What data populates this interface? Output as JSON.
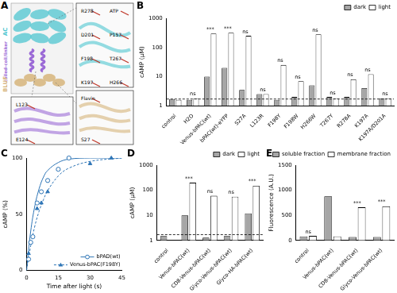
{
  "structure_panel": {
    "panel": "A",
    "domains": [
      {
        "label": "AC",
        "color": "#4fc6d0"
      },
      {
        "label": "coiled-coil/linker",
        "color": "#9b6ad6"
      },
      {
        "label": "BLUF",
        "color": "#d6b47a"
      }
    ],
    "site_labels": {
      "active_site": [
        "R278",
        "ATP",
        "D201",
        "P157",
        "F198",
        "T267",
        "K197",
        "H266"
      ],
      "linker": [
        "L123",
        "E124"
      ],
      "flavin_site": [
        "Flavin",
        "S27"
      ]
    }
  },
  "chart_data": [
    {
      "panel": "B",
      "type": "bar",
      "log": "y",
      "y_label": "cAMP (µM)",
      "categories": [
        "control",
        "H2O",
        "Venus-bPAC(wt)",
        "bPAC(wt)-eYFP",
        "S27A",
        "L123R",
        "F198Y",
        "F198W",
        "H266W",
        "T267Y",
        "R278A",
        "K197A",
        "K197A/D201A"
      ],
      "series": [
        {
          "name": "dark",
          "color": "#a6a6a6",
          "values": [
            1.7,
            1.6,
            10,
            20,
            3.5,
            2.5,
            1.6,
            2,
            5,
            2,
            2,
            4,
            1.8
          ]
        },
        {
          "name": "light",
          "color": "#ffffff",
          "values": [
            1.6,
            1.8,
            300,
            320,
            250,
            2.5,
            25,
            7,
            280,
            1.8,
            8,
            12,
            1.8
          ]
        }
      ],
      "significance": [
        null,
        "ns",
        "***",
        "***",
        "ns",
        "ns",
        "ns",
        "ns",
        "ns",
        "ns",
        "ns",
        "ns",
        "ns"
      ],
      "reference_line": 1.7,
      "ylim": [
        1,
        1000
      ],
      "yticks": [
        1,
        10,
        100,
        1000
      ],
      "legend": "top right",
      "grid": false
    },
    {
      "panel": "C",
      "type": "scatter",
      "x_label": "Time after light (s)",
      "y_label": "cAMP (%)",
      "xlim": [
        0,
        45
      ],
      "xticks": [
        0,
        15,
        30,
        45
      ],
      "ylim": [
        0,
        100
      ],
      "yticks": [
        0,
        50,
        100
      ],
      "legend": "lower right",
      "grid": false,
      "series": [
        {
          "name": "bPAD(wt)",
          "color": "#2e75b6",
          "marker": "circle",
          "line_style": "solid",
          "x": [
            1,
            2,
            3,
            5,
            7,
            10,
            15,
            20
          ],
          "values": [
            10,
            25,
            30,
            60,
            70,
            80,
            90,
            100
          ],
          "fit": {
            "x": [
              0,
              2,
              4,
              6,
              8,
              10,
              15,
              20,
              30,
              45
            ],
            "values": [
              0,
              35,
              58,
              73,
              83,
              89,
              96,
              99,
              100,
              100
            ]
          }
        },
        {
          "name": "Venus-bPAC(F198Y)",
          "color": "#2e75b6",
          "marker": "triangle",
          "line_style": "dashed",
          "x": [
            1,
            2,
            5,
            7,
            10,
            15,
            30,
            40
          ],
          "values": [
            15,
            25,
            55,
            60,
            70,
            90,
            95,
            100
          ],
          "fit": {
            "x": [
              0,
              2,
              4,
              6,
              8,
              10,
              15,
              20,
              30,
              45
            ],
            "values": [
              0,
              22,
              40,
              53,
              63,
              71,
              84,
              91,
              97,
              100
            ]
          }
        }
      ]
    },
    {
      "panel": "D",
      "type": "bar",
      "log": "y",
      "y_label": "cAMP (µM)",
      "categories": [
        "control",
        "Venus-bPAC(wt)",
        "CD8-Venus-bPAC(wt)",
        "Glyco-Venus-bPAC(wt)",
        "Glyco-HA-bPAC(wt)"
      ],
      "series": [
        {
          "name": "dark",
          "color": "#a6a6a6",
          "values": [
            1.5,
            10,
            1.3,
            1.5,
            12
          ]
        },
        {
          "name": "light",
          "color": "#ffffff",
          "values": [
            null,
            200,
            60,
            55,
            150
          ]
        }
      ],
      "significance": [
        null,
        "***",
        "ns",
        "ns",
        "***"
      ],
      "reference_line": 1.7,
      "ylim": [
        1,
        1000
      ],
      "yticks": [
        1,
        10,
        100,
        1000
      ],
      "legend": "top right",
      "grid": false
    },
    {
      "panel": "E",
      "type": "bar",
      "y_label": "Fluorescence (A.U.)",
      "categories": [
        "control",
        "Venus-bPAC(wt)",
        "CD8-Venus-bPAC(wt)",
        "Glyco-Venus-bPAC(wt)"
      ],
      "series": [
        {
          "name": "soluble fraction",
          "color": "#a6a6a6",
          "values": [
            80,
            880,
            70,
            70
          ]
        },
        {
          "name": "membrane fraction",
          "color": "#ffffff",
          "values": [
            90,
            80,
            660,
            680
          ]
        }
      ],
      "significance": [
        "ns",
        null,
        "***",
        "***"
      ],
      "ylim": [
        0,
        1500
      ],
      "yticks": [
        0,
        500,
        1000,
        1500
      ],
      "legend": "top right",
      "grid": false
    }
  ]
}
